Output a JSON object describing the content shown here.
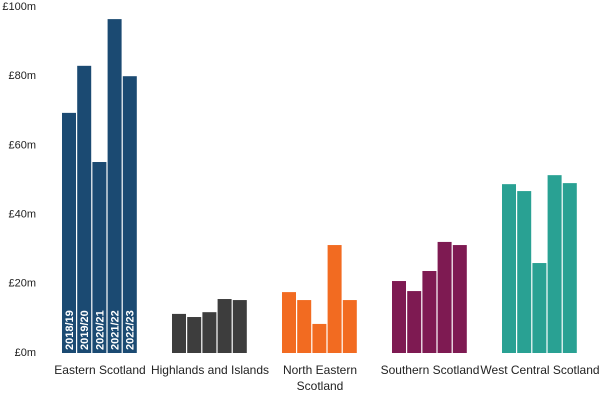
{
  "chart_data": {
    "type": "bar",
    "categories": [
      "Eastern Scotland",
      "Highlands and Islands",
      "North Eastern Scotland",
      "Southern Scotland",
      "West Central Scotland"
    ],
    "colors": [
      "#1b4a72",
      "#3d3d3d",
      "#f26b21",
      "#7e1a52",
      "#29a193"
    ],
    "series": [
      {
        "name": "2018/19",
        "values": [
          69.4,
          11.3,
          17.6,
          20.8,
          48.8
        ]
      },
      {
        "name": "2019/20",
        "values": [
          83,
          10.4,
          15.3,
          17.9,
          46.8
        ]
      },
      {
        "name": "2020/21",
        "values": [
          55.2,
          11.8,
          8.4,
          23.7,
          26
        ]
      },
      {
        "name": "2021/22",
        "values": [
          96.5,
          15.6,
          31.2,
          32.1,
          51.4
        ]
      },
      {
        "name": "2022/23",
        "values": [
          80,
          15.3,
          15.3,
          31.2,
          49.1
        ]
      }
    ],
    "ylim": [
      0,
      100
    ],
    "yticks": [
      {
        "value": 0,
        "label": "£0m"
      },
      {
        "value": 20,
        "label": "£20m"
      },
      {
        "value": 40,
        "label": "£40m"
      },
      {
        "value": 60,
        "label": "£60m"
      },
      {
        "value": 80,
        "label": "£80m"
      },
      {
        "value": 100,
        "label": "£100m"
      }
    ],
    "grid": false
  }
}
